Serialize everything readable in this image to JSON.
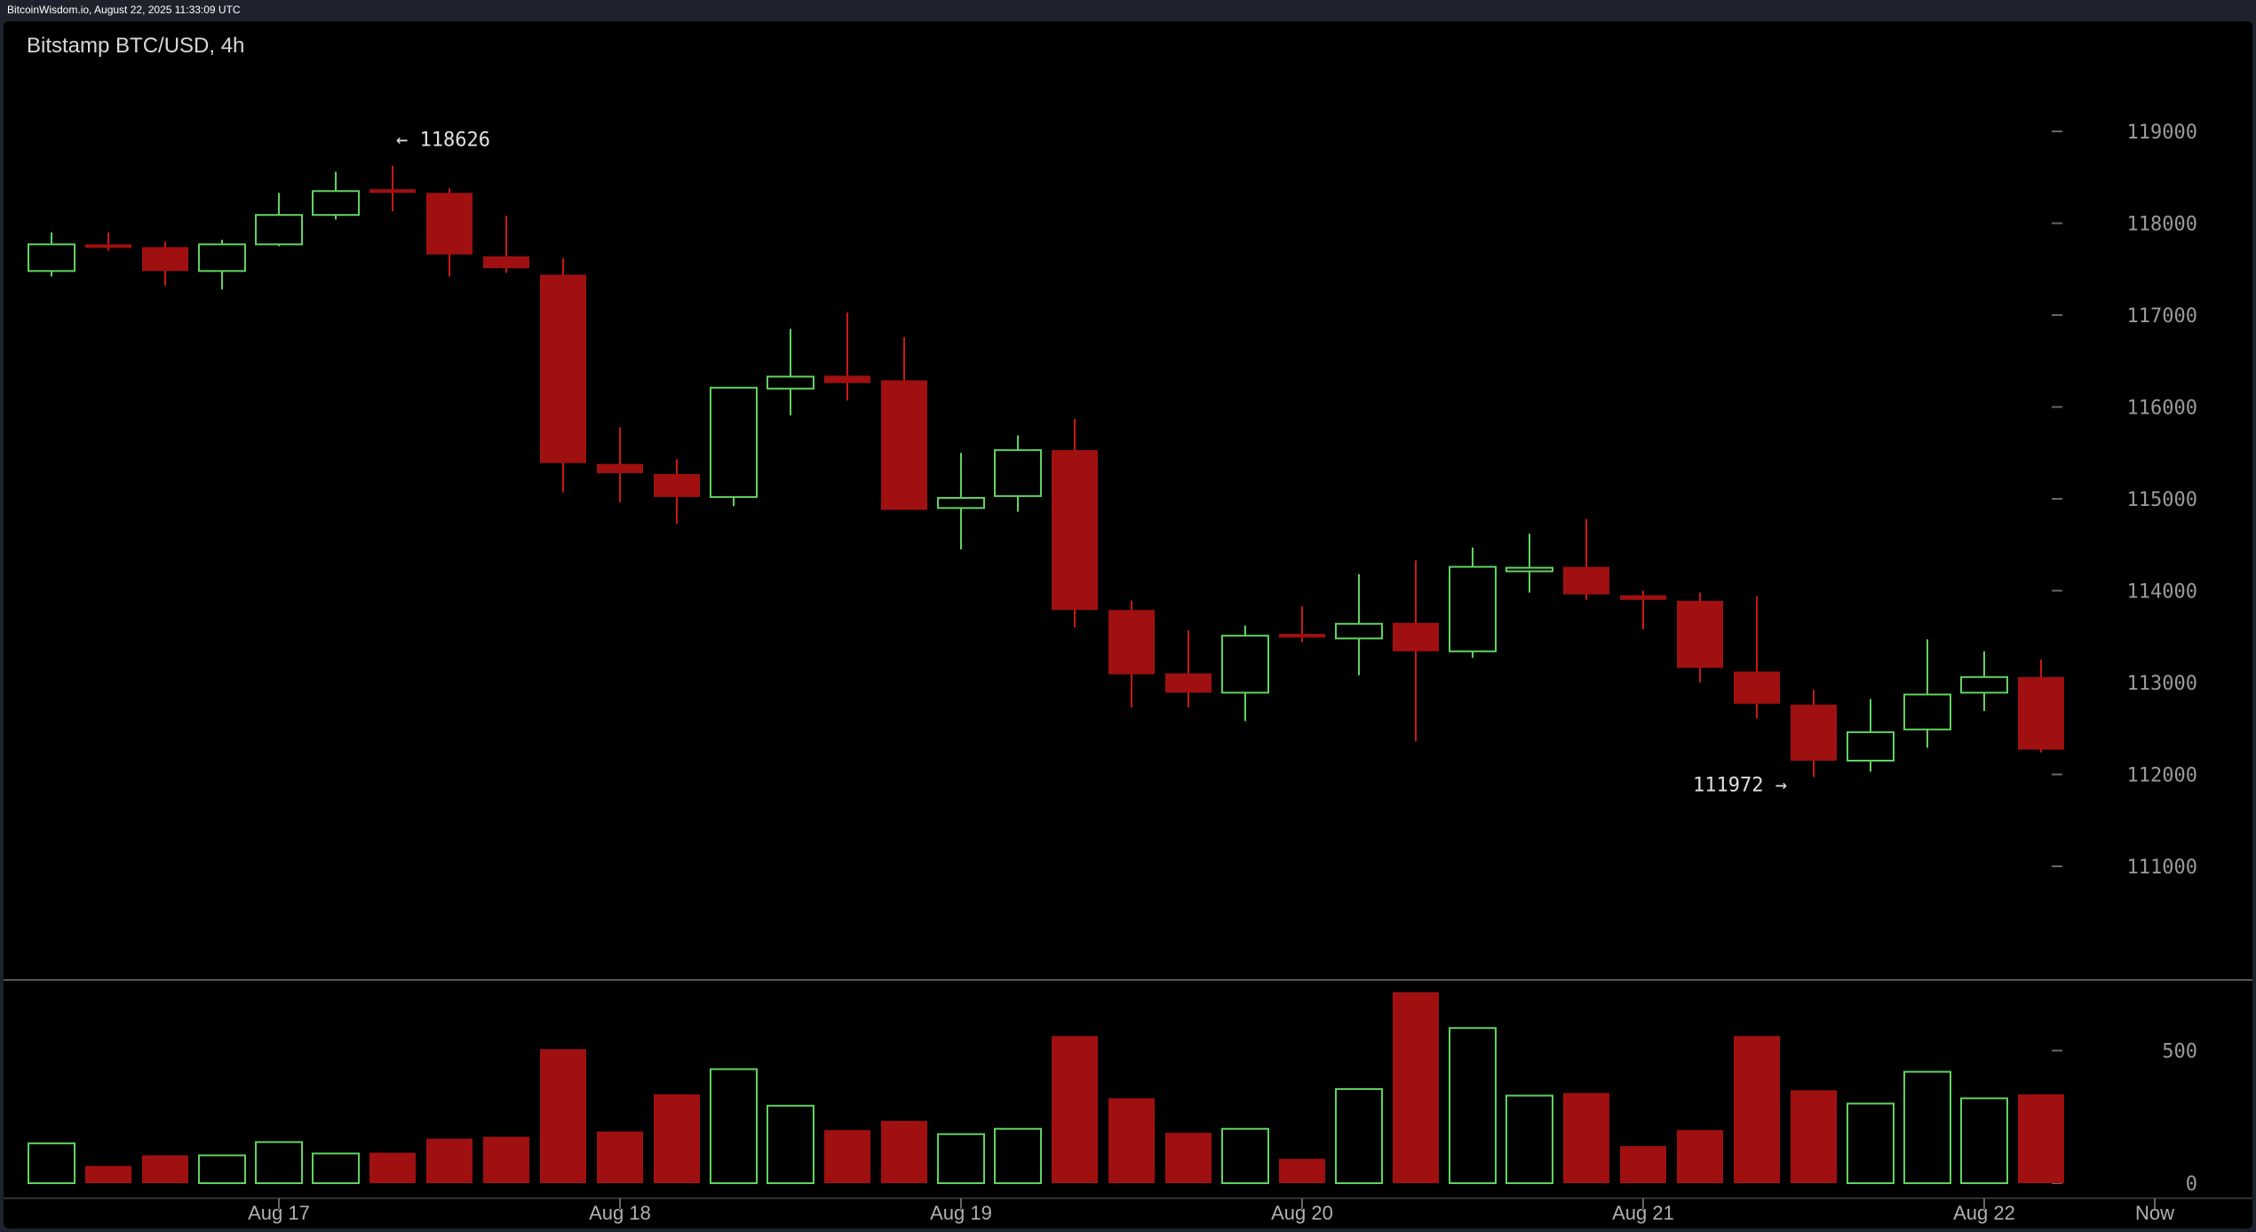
{
  "source": "BitcoinWisdom.io, August 22, 2025 11:33:09 UTC",
  "chart_data": {
    "type": "candlestick",
    "title": "Bitstamp BTC/USD, 4h",
    "price_axis": {
      "ticks": [
        111000,
        112000,
        113000,
        114000,
        115000,
        116000,
        117000,
        118000,
        119000
      ],
      "range": [
        109800,
        119700
      ]
    },
    "volume_axis": {
      "ticks": [
        0,
        500
      ],
      "range": [
        0,
        720
      ]
    },
    "x_labels": [
      {
        "label": "Aug 17",
        "index": 4
      },
      {
        "label": "Aug 18",
        "index": 10
      },
      {
        "label": "Aug 19",
        "index": 16
      },
      {
        "label": "Aug 20",
        "index": 22
      },
      {
        "label": "Aug 21",
        "index": 28
      },
      {
        "label": "Aug 22",
        "index": 34
      },
      {
        "label": "Now",
        "index": 37
      }
    ],
    "annotations": [
      {
        "text": "← 118626",
        "index": 6,
        "price": 118626,
        "side": "right"
      },
      {
        "text": "111972 →",
        "index": 31,
        "price": 111972,
        "side": "left"
      }
    ],
    "colors": {
      "up": "#5fd35f",
      "down": "#a01010",
      "down_wick": "#c81818",
      "axis": "#9a9a9a",
      "divider": "#555555"
    },
    "candles": [
      {
        "o": 117480,
        "h": 117900,
        "l": 117420,
        "c": 117770,
        "v": 150
      },
      {
        "o": 117770,
        "h": 117900,
        "l": 117700,
        "c": 117740,
        "v": 65
      },
      {
        "o": 117740,
        "h": 117800,
        "l": 117320,
        "c": 117480,
        "v": 105
      },
      {
        "o": 117480,
        "h": 117820,
        "l": 117280,
        "c": 117770,
        "v": 105
      },
      {
        "o": 117770,
        "h": 118330,
        "l": 117750,
        "c": 118090,
        "v": 155
      },
      {
        "o": 118090,
        "h": 118560,
        "l": 118040,
        "c": 118350,
        "v": 112
      },
      {
        "o": 118370,
        "h": 118626,
        "l": 118130,
        "c": 118330,
        "v": 115
      },
      {
        "o": 118330,
        "h": 118380,
        "l": 117420,
        "c": 117660,
        "v": 168
      },
      {
        "o": 117640,
        "h": 118080,
        "l": 117460,
        "c": 117510,
        "v": 175
      },
      {
        "o": 117440,
        "h": 117620,
        "l": 115070,
        "c": 115390,
        "v": 505
      },
      {
        "o": 115380,
        "h": 115780,
        "l": 114960,
        "c": 115280,
        "v": 195
      },
      {
        "o": 115270,
        "h": 115430,
        "l": 114730,
        "c": 115020,
        "v": 335
      },
      {
        "o": 115020,
        "h": 116210,
        "l": 114920,
        "c": 116210,
        "v": 430
      },
      {
        "o": 116200,
        "h": 116850,
        "l": 115910,
        "c": 116330,
        "v": 292
      },
      {
        "o": 116340,
        "h": 117030,
        "l": 116070,
        "c": 116260,
        "v": 200
      },
      {
        "o": 116290,
        "h": 116760,
        "l": 114880,
        "c": 114880,
        "v": 235
      },
      {
        "o": 114900,
        "h": 115500,
        "l": 114450,
        "c": 115010,
        "v": 185
      },
      {
        "o": 115030,
        "h": 115690,
        "l": 114860,
        "c": 115530,
        "v": 205
      },
      {
        "o": 115530,
        "h": 115870,
        "l": 113600,
        "c": 113790,
        "v": 555
      },
      {
        "o": 113790,
        "h": 113890,
        "l": 112730,
        "c": 113090,
        "v": 320
      },
      {
        "o": 113100,
        "h": 113570,
        "l": 112730,
        "c": 112890,
        "v": 190
      },
      {
        "o": 112890,
        "h": 113620,
        "l": 112580,
        "c": 113510,
        "v": 205
      },
      {
        "o": 113530,
        "h": 113830,
        "l": 113440,
        "c": 113490,
        "v": 92
      },
      {
        "o": 113480,
        "h": 114180,
        "l": 113080,
        "c": 113640,
        "v": 355
      },
      {
        "o": 113650,
        "h": 114330,
        "l": 112360,
        "c": 113340,
        "v": 720
      },
      {
        "o": 113340,
        "h": 114470,
        "l": 113270,
        "c": 114260,
        "v": 585
      },
      {
        "o": 114250,
        "h": 114620,
        "l": 113980,
        "c": 114250,
        "v": 330
      },
      {
        "o": 114260,
        "h": 114780,
        "l": 113900,
        "c": 113960,
        "v": 340
      },
      {
        "o": 113950,
        "h": 114000,
        "l": 113580,
        "c": 113900,
        "v": 140
      },
      {
        "o": 113890,
        "h": 113980,
        "l": 113000,
        "c": 113160,
        "v": 200
      },
      {
        "o": 113120,
        "h": 113940,
        "l": 112610,
        "c": 112770,
        "v": 555
      },
      {
        "o": 112760,
        "h": 112920,
        "l": 111972,
        "c": 112150,
        "v": 350
      },
      {
        "o": 112150,
        "h": 112820,
        "l": 112030,
        "c": 112460,
        "v": 300
      },
      {
        "o": 112490,
        "h": 113470,
        "l": 112290,
        "c": 112870,
        "v": 420
      },
      {
        "o": 112890,
        "h": 113340,
        "l": 112690,
        "c": 113060,
        "v": 320
      },
      {
        "o": 113060,
        "h": 113250,
        "l": 112240,
        "c": 112270,
        "v": 335
      }
    ]
  }
}
